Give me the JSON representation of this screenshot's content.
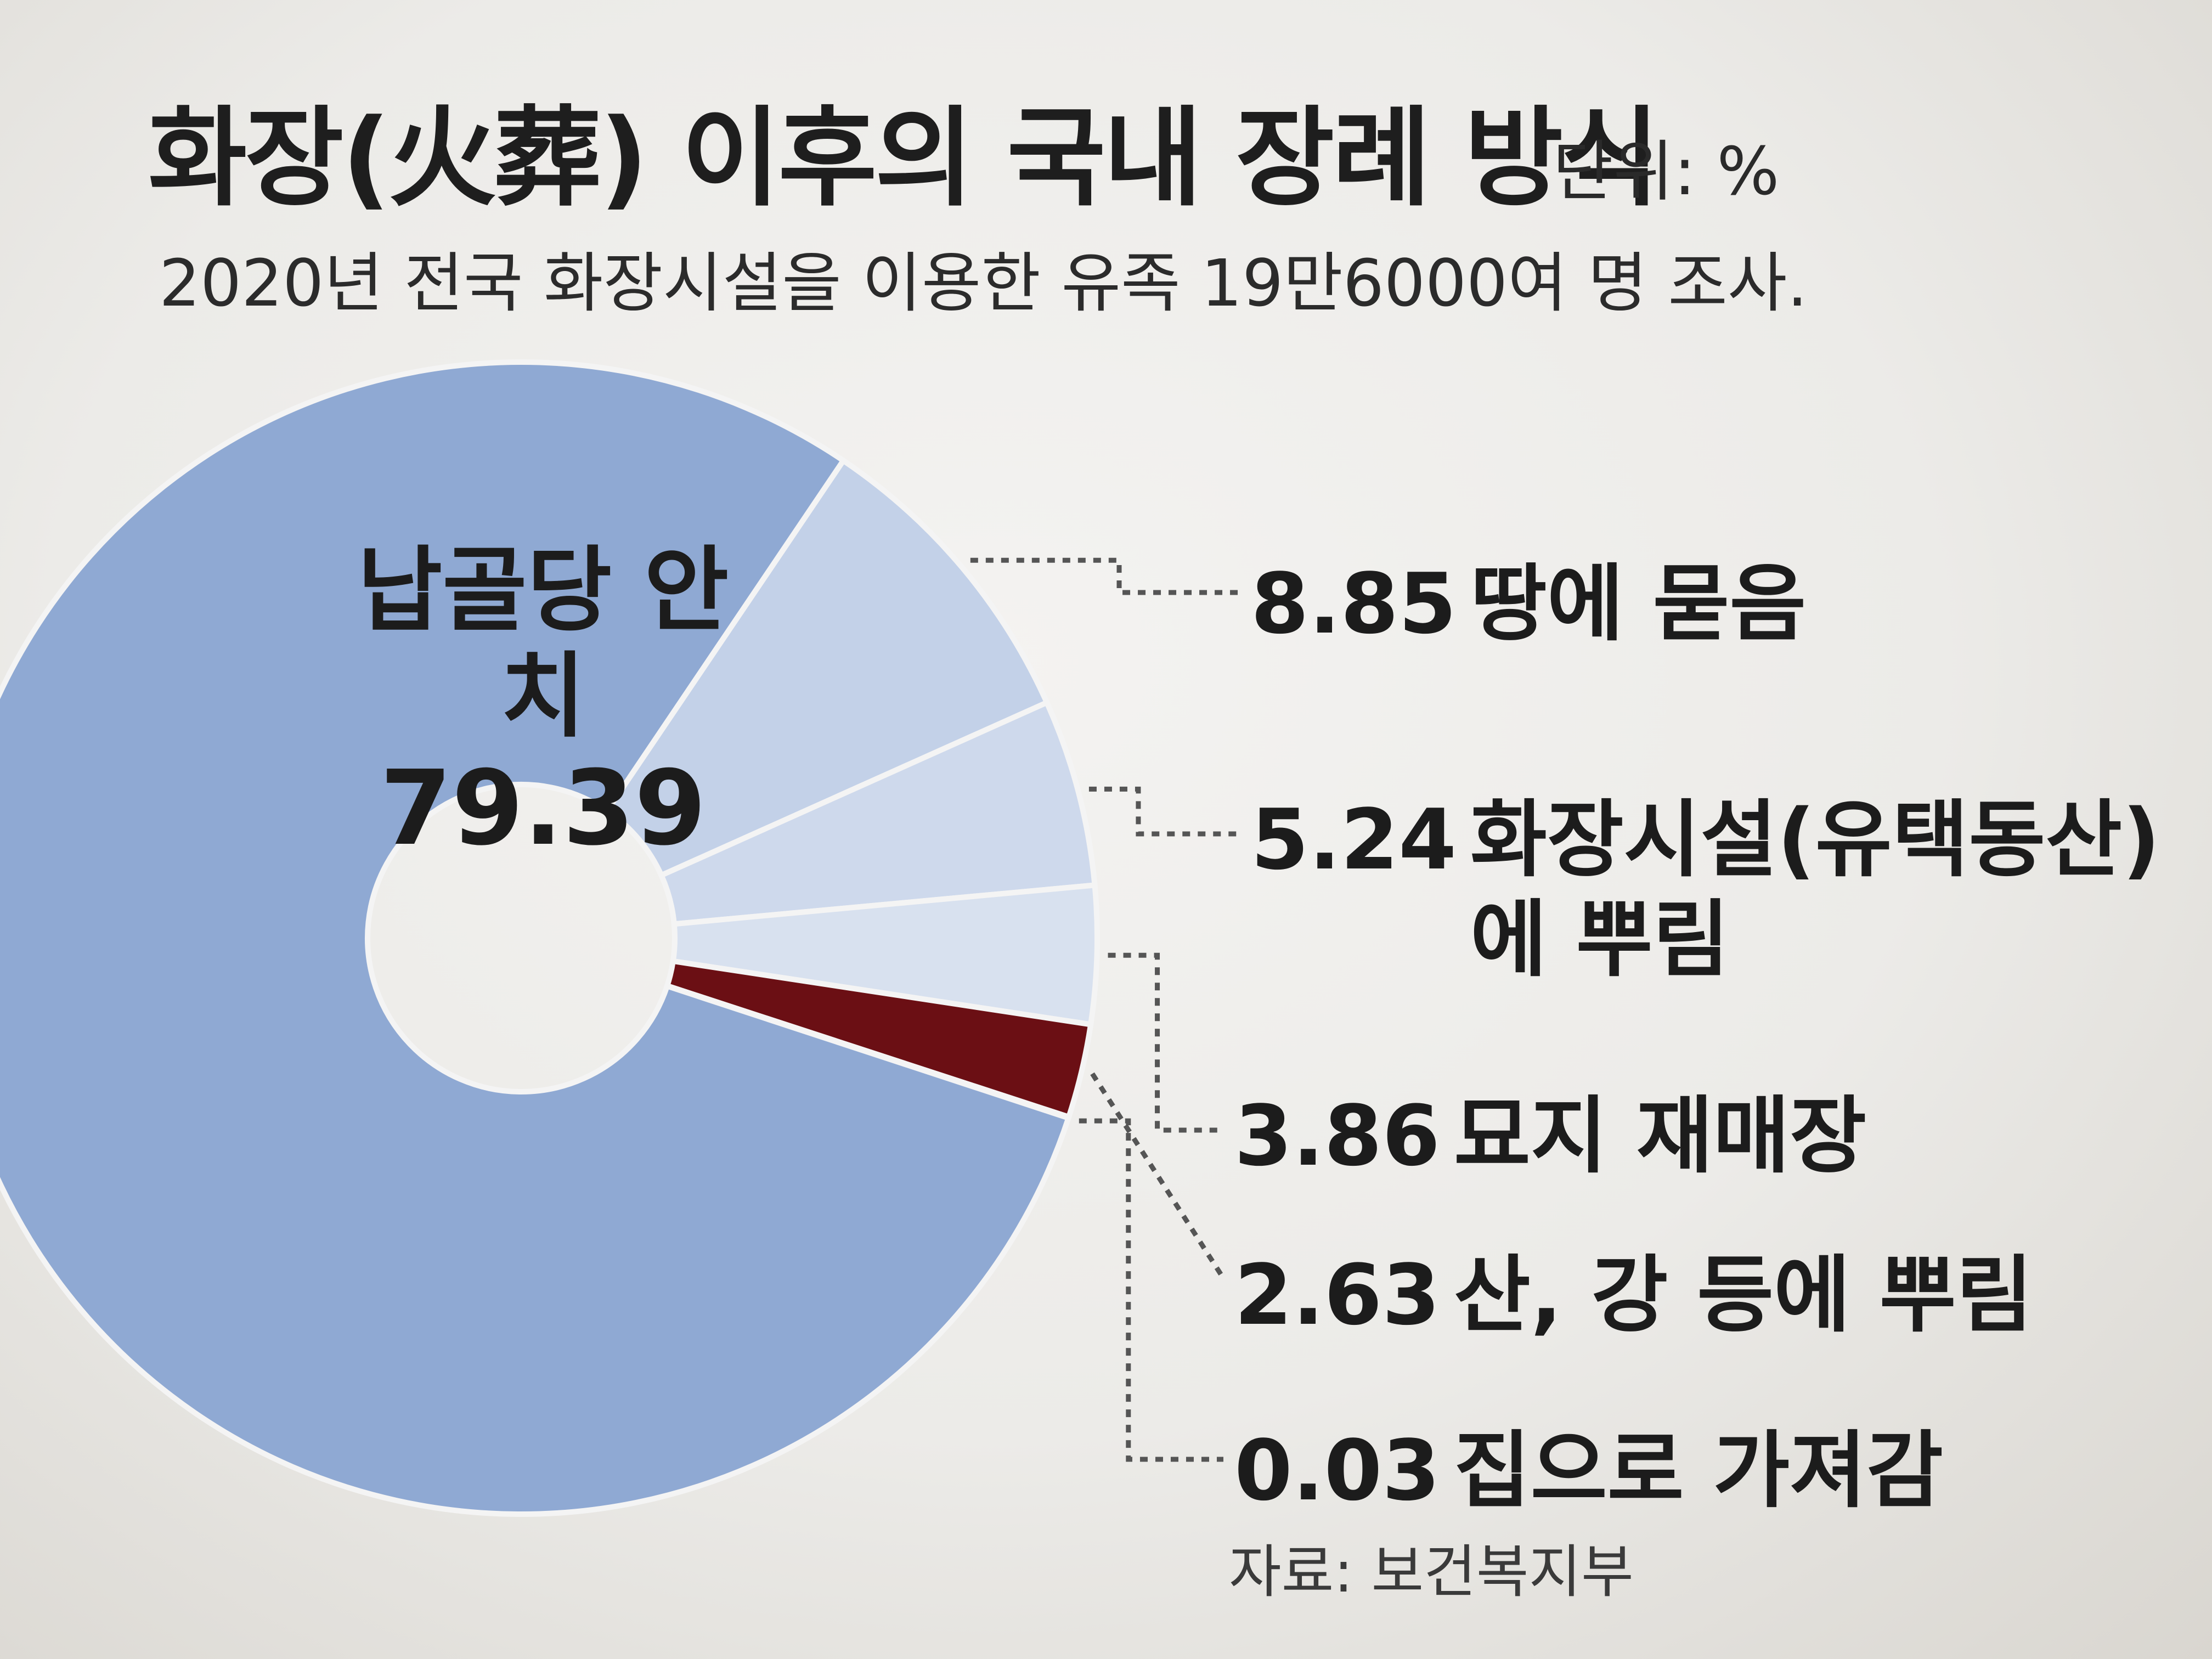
{
  "chart_data": {
    "type": "pie",
    "title": "화장(火葬) 이후의 국내 장례 방식",
    "unit": "단위: %",
    "subtitle": "2020년 전국 화장시설을 이용한 유족 19만6000여 명 조사.",
    "source": "자료: 보건복지부",
    "slices": [
      {
        "label": "납골당 안치",
        "value": 79.39,
        "display": "79.39"
      },
      {
        "label": "땅에 묻음",
        "value": 8.85,
        "display": "8.85"
      },
      {
        "label": "화장시설(유택동산)",
        "label_line2": "에 뿌림",
        "value": 5.24,
        "display": "5.24"
      },
      {
        "label": "묘지 재매장",
        "value": 3.86,
        "display": "3.86"
      },
      {
        "label": "산, 강 등에 뿌림",
        "value": 2.63,
        "display": "2.63"
      },
      {
        "label": "집으로 가져감",
        "value": 0.03,
        "display": "0.03"
      }
    ]
  },
  "colors": {
    "main_slice": "#8fa9d3",
    "light_slices": [
      "#c3d1e8",
      "#ced9ec",
      "#d8e1ef",
      "#e2e8f2"
    ],
    "highlight_slice": "#6b0f14",
    "leader_line": "#555555"
  }
}
